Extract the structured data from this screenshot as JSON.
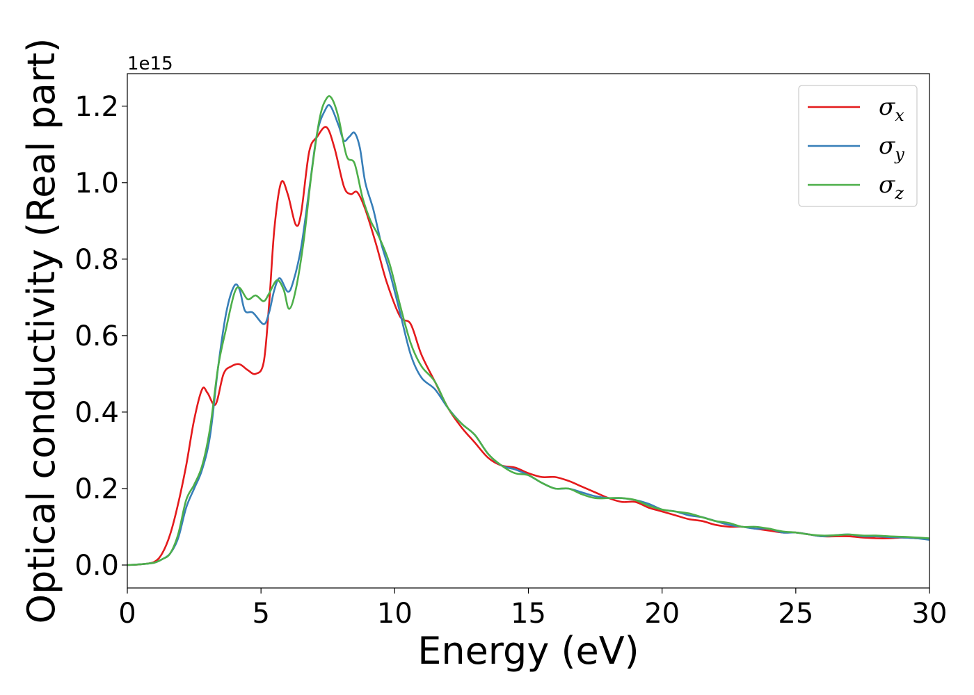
{
  "chart_data": {
    "type": "line",
    "xlabel": "Energy (eV)",
    "ylabel": "Optical conductivity (Real part)",
    "y_offset_text": "1e15",
    "xlim": [
      0,
      30
    ],
    "ylim": [
      -0.06,
      1.285
    ],
    "xticks": [
      0,
      5,
      10,
      15,
      20,
      25,
      30
    ],
    "xtick_labels": [
      "0",
      "5",
      "10",
      "15",
      "20",
      "25",
      "30"
    ],
    "yticks": [
      0.0,
      0.2,
      0.4,
      0.6,
      0.8,
      1.0,
      1.2
    ],
    "ytick_labels": [
      "0.0",
      "0.2",
      "0.4",
      "0.6",
      "0.8",
      "1.0",
      "1.2"
    ],
    "legend_position": "upper right",
    "grid": false,
    "series": [
      {
        "name": "σx",
        "symbol": "σ",
        "subscript": "x",
        "color": "#e41a1c",
        "points": [
          [
            0,
            0
          ],
          [
            0.5,
            0.002
          ],
          [
            1,
            0.008
          ],
          [
            1.3,
            0.03
          ],
          [
            1.6,
            0.08
          ],
          [
            1.9,
            0.16
          ],
          [
            2.2,
            0.26
          ],
          [
            2.5,
            0.38
          ],
          [
            2.8,
            0.46
          ],
          [
            3.0,
            0.45
          ],
          [
            3.3,
            0.42
          ],
          [
            3.6,
            0.5
          ],
          [
            3.9,
            0.52
          ],
          [
            4.2,
            0.525
          ],
          [
            4.5,
            0.51
          ],
          [
            4.8,
            0.5
          ],
          [
            5.1,
            0.53
          ],
          [
            5.3,
            0.68
          ],
          [
            5.5,
            0.88
          ],
          [
            5.75,
            1.0
          ],
          [
            6.0,
            0.97
          ],
          [
            6.3,
            0.89
          ],
          [
            6.5,
            0.92
          ],
          [
            6.8,
            1.08
          ],
          [
            7.1,
            1.12
          ],
          [
            7.45,
            1.145
          ],
          [
            7.75,
            1.09
          ],
          [
            8.1,
            0.99
          ],
          [
            8.35,
            0.97
          ],
          [
            8.6,
            0.975
          ],
          [
            8.9,
            0.93
          ],
          [
            9.3,
            0.84
          ],
          [
            9.7,
            0.74
          ],
          [
            10.2,
            0.65
          ],
          [
            10.6,
            0.63
          ],
          [
            11.0,
            0.55
          ],
          [
            11.5,
            0.48
          ],
          [
            12.0,
            0.41
          ],
          [
            12.5,
            0.36
          ],
          [
            13.0,
            0.32
          ],
          [
            13.5,
            0.28
          ],
          [
            14.0,
            0.26
          ],
          [
            14.5,
            0.255
          ],
          [
            15.0,
            0.24
          ],
          [
            15.5,
            0.23
          ],
          [
            16.0,
            0.23
          ],
          [
            16.5,
            0.22
          ],
          [
            17.0,
            0.205
          ],
          [
            17.5,
            0.19
          ],
          [
            18.0,
            0.175
          ],
          [
            18.5,
            0.165
          ],
          [
            19.0,
            0.165
          ],
          [
            19.5,
            0.15
          ],
          [
            20.0,
            0.14
          ],
          [
            20.5,
            0.13
          ],
          [
            21.0,
            0.12
          ],
          [
            21.5,
            0.115
          ],
          [
            22.0,
            0.105
          ],
          [
            22.5,
            0.1
          ],
          [
            23.0,
            0.1
          ],
          [
            23.5,
            0.095
          ],
          [
            24.0,
            0.09
          ],
          [
            24.5,
            0.085
          ],
          [
            25.0,
            0.085
          ],
          [
            25.5,
            0.08
          ],
          [
            26.0,
            0.075
          ],
          [
            26.5,
            0.075
          ],
          [
            27.0,
            0.075
          ],
          [
            27.5,
            0.072
          ],
          [
            28.0,
            0.07
          ],
          [
            28.5,
            0.07
          ],
          [
            29.0,
            0.072
          ],
          [
            29.5,
            0.07
          ],
          [
            30.0,
            0.068
          ]
        ]
      },
      {
        "name": "σy",
        "symbol": "σ",
        "subscript": "y",
        "color": "#377eb8",
        "points": [
          [
            0,
            0
          ],
          [
            0.5,
            0.002
          ],
          [
            1,
            0.006
          ],
          [
            1.3,
            0.015
          ],
          [
            1.6,
            0.03
          ],
          [
            1.9,
            0.07
          ],
          [
            2.2,
            0.15
          ],
          [
            2.5,
            0.2
          ],
          [
            2.8,
            0.25
          ],
          [
            3.1,
            0.34
          ],
          [
            3.4,
            0.52
          ],
          [
            3.7,
            0.66
          ],
          [
            4.0,
            0.73
          ],
          [
            4.2,
            0.72
          ],
          [
            4.4,
            0.665
          ],
          [
            4.7,
            0.66
          ],
          [
            5.1,
            0.63
          ],
          [
            5.3,
            0.66
          ],
          [
            5.5,
            0.72
          ],
          [
            5.7,
            0.75
          ],
          [
            6.0,
            0.715
          ],
          [
            6.2,
            0.74
          ],
          [
            6.5,
            0.83
          ],
          [
            6.8,
            0.98
          ],
          [
            7.1,
            1.13
          ],
          [
            7.4,
            1.19
          ],
          [
            7.6,
            1.2
          ],
          [
            7.9,
            1.15
          ],
          [
            8.1,
            1.11
          ],
          [
            8.3,
            1.12
          ],
          [
            8.5,
            1.13
          ],
          [
            8.7,
            1.09
          ],
          [
            8.9,
            1.0
          ],
          [
            9.2,
            0.93
          ],
          [
            9.5,
            0.84
          ],
          [
            9.8,
            0.77
          ],
          [
            10.2,
            0.66
          ],
          [
            10.6,
            0.55
          ],
          [
            11.0,
            0.49
          ],
          [
            11.5,
            0.46
          ],
          [
            12.0,
            0.41
          ],
          [
            12.5,
            0.37
          ],
          [
            13.0,
            0.34
          ],
          [
            13.5,
            0.29
          ],
          [
            14.0,
            0.26
          ],
          [
            14.5,
            0.25
          ],
          [
            15.0,
            0.235
          ],
          [
            15.5,
            0.215
          ],
          [
            16.0,
            0.2
          ],
          [
            16.5,
            0.2
          ],
          [
            17.0,
            0.19
          ],
          [
            17.5,
            0.18
          ],
          [
            18.0,
            0.175
          ],
          [
            18.5,
            0.175
          ],
          [
            19.0,
            0.17
          ],
          [
            19.5,
            0.16
          ],
          [
            20.0,
            0.145
          ],
          [
            20.5,
            0.14
          ],
          [
            21.0,
            0.13
          ],
          [
            21.5,
            0.125
          ],
          [
            22.0,
            0.115
          ],
          [
            22.5,
            0.105
          ],
          [
            23.0,
            0.1
          ],
          [
            23.5,
            0.095
          ],
          [
            24.0,
            0.095
          ],
          [
            24.5,
            0.085
          ],
          [
            25.0,
            0.085
          ],
          [
            25.5,
            0.08
          ],
          [
            26.0,
            0.075
          ],
          [
            26.5,
            0.078
          ],
          [
            27.0,
            0.08
          ],
          [
            27.5,
            0.075
          ],
          [
            28.0,
            0.075
          ],
          [
            28.5,
            0.073
          ],
          [
            29.0,
            0.072
          ],
          [
            29.5,
            0.07
          ],
          [
            30.0,
            0.066
          ]
        ]
      },
      {
        "name": "σz",
        "symbol": "σ",
        "subscript": "z",
        "color": "#4daf4a",
        "points": [
          [
            0,
            0
          ],
          [
            0.5,
            0.002
          ],
          [
            1,
            0.006
          ],
          [
            1.3,
            0.015
          ],
          [
            1.6,
            0.03
          ],
          [
            1.9,
            0.08
          ],
          [
            2.2,
            0.17
          ],
          [
            2.5,
            0.21
          ],
          [
            2.8,
            0.26
          ],
          [
            3.1,
            0.36
          ],
          [
            3.4,
            0.52
          ],
          [
            3.7,
            0.62
          ],
          [
            4.0,
            0.71
          ],
          [
            4.2,
            0.725
          ],
          [
            4.5,
            0.695
          ],
          [
            4.8,
            0.705
          ],
          [
            5.1,
            0.69
          ],
          [
            5.3,
            0.71
          ],
          [
            5.6,
            0.745
          ],
          [
            5.85,
            0.72
          ],
          [
            6.05,
            0.67
          ],
          [
            6.3,
            0.72
          ],
          [
            6.6,
            0.85
          ],
          [
            6.9,
            1.03
          ],
          [
            7.2,
            1.17
          ],
          [
            7.45,
            1.22
          ],
          [
            7.65,
            1.22
          ],
          [
            7.9,
            1.17
          ],
          [
            8.2,
            1.07
          ],
          [
            8.5,
            1.05
          ],
          [
            8.8,
            0.96
          ],
          [
            9.1,
            0.9
          ],
          [
            9.4,
            0.86
          ],
          [
            9.8,
            0.79
          ],
          [
            10.2,
            0.68
          ],
          [
            10.6,
            0.58
          ],
          [
            11.0,
            0.52
          ],
          [
            11.5,
            0.48
          ],
          [
            12.0,
            0.41
          ],
          [
            12.5,
            0.37
          ],
          [
            13.0,
            0.34
          ],
          [
            13.5,
            0.29
          ],
          [
            14.0,
            0.26
          ],
          [
            14.5,
            0.24
          ],
          [
            15.0,
            0.235
          ],
          [
            15.5,
            0.215
          ],
          [
            16.0,
            0.2
          ],
          [
            16.5,
            0.2
          ],
          [
            17.0,
            0.185
          ],
          [
            17.5,
            0.175
          ],
          [
            18.0,
            0.175
          ],
          [
            18.5,
            0.175
          ],
          [
            19.0,
            0.17
          ],
          [
            19.5,
            0.155
          ],
          [
            20.0,
            0.145
          ],
          [
            20.5,
            0.14
          ],
          [
            21.0,
            0.135
          ],
          [
            21.5,
            0.125
          ],
          [
            22.0,
            0.115
          ],
          [
            22.5,
            0.11
          ],
          [
            23.0,
            0.1
          ],
          [
            23.5,
            0.1
          ],
          [
            24.0,
            0.095
          ],
          [
            24.5,
            0.088
          ],
          [
            25.0,
            0.085
          ],
          [
            25.5,
            0.08
          ],
          [
            26.0,
            0.077
          ],
          [
            26.5,
            0.078
          ],
          [
            27.0,
            0.08
          ],
          [
            27.5,
            0.077
          ],
          [
            28.0,
            0.077
          ],
          [
            28.5,
            0.075
          ],
          [
            29.0,
            0.074
          ],
          [
            29.5,
            0.072
          ],
          [
            30.0,
            0.07
          ]
        ]
      }
    ]
  }
}
